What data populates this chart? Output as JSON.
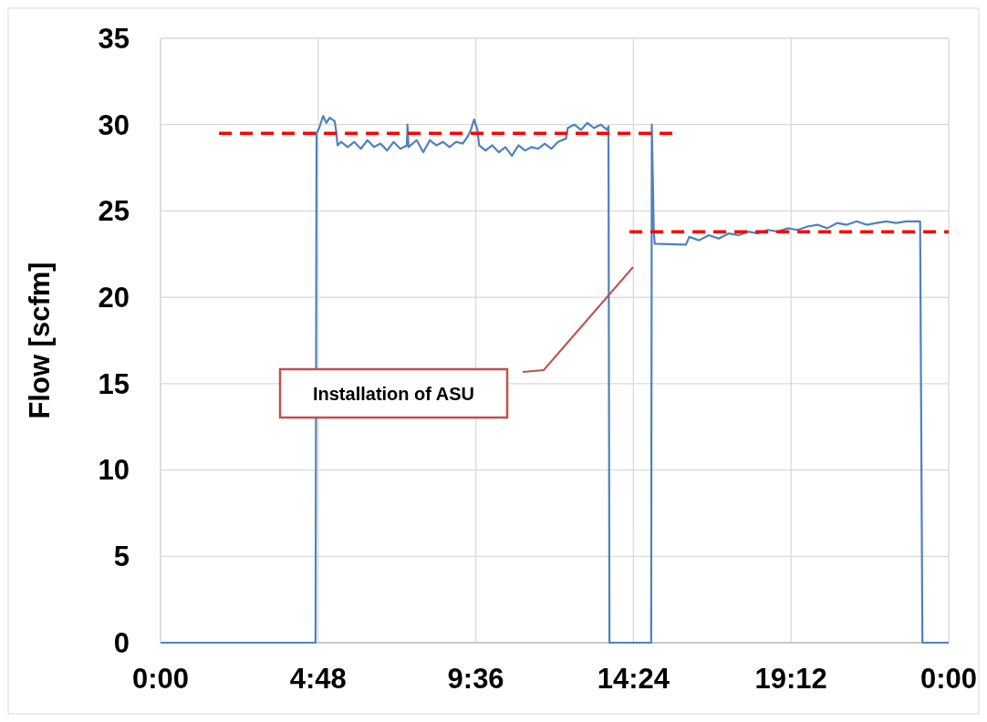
{
  "chart_data": {
    "type": "line",
    "ylabel": "Flow [scfm]",
    "xlim": [
      0,
      24
    ],
    "ylim": [
      0,
      35
    ],
    "xticks": [
      {
        "value": 0,
        "label": "0:00"
      },
      {
        "value": 4.8,
        "label": "4:48"
      },
      {
        "value": 9.6,
        "label": "9:36"
      },
      {
        "value": 14.4,
        "label": "14:24"
      },
      {
        "value": 19.2,
        "label": "19:12"
      },
      {
        "value": 24,
        "label": "0:00"
      }
    ],
    "yticks": [
      0,
      5,
      10,
      15,
      20,
      25,
      30,
      35
    ],
    "grid": true,
    "series": [
      {
        "color": "#4f81bd",
        "x": [
          0,
          4.72,
          4.75,
          4.83,
          4.95,
          5.05,
          5.15,
          5.3,
          5.35,
          5.39,
          5.5,
          5.7,
          5.9,
          6.1,
          6.3,
          6.5,
          6.7,
          6.9,
          7.1,
          7.3,
          7.5,
          7.52,
          7.55,
          7.8,
          8.0,
          8.2,
          8.4,
          8.6,
          8.8,
          9.0,
          9.2,
          9.35,
          9.45,
          9.55,
          9.65,
          9.7,
          9.9,
          10.1,
          10.3,
          10.5,
          10.7,
          10.9,
          11.1,
          11.3,
          11.5,
          11.7,
          11.9,
          12.1,
          12.35,
          12.4,
          12.6,
          12.8,
          13.0,
          13.2,
          13.4,
          13.6,
          13.64,
          13.67,
          14.4,
          14.94,
          14.96,
          15.02,
          15.05,
          16.0,
          16.1,
          16.4,
          16.7,
          17.0,
          17.3,
          17.6,
          17.9,
          18.2,
          18.5,
          18.8,
          19.1,
          19.4,
          19.7,
          20.0,
          20.3,
          20.6,
          20.9,
          21.2,
          21.5,
          21.8,
          22.1,
          22.4,
          22.7,
          23.0,
          23.13,
          23.2,
          24
        ],
        "values": [
          0,
          0,
          29.5,
          29.8,
          30.5,
          30.1,
          30.4,
          30.2,
          29.6,
          28.8,
          29.0,
          28.7,
          29.0,
          28.6,
          29.1,
          28.7,
          28.9,
          28.5,
          29.0,
          28.6,
          28.8,
          30.0,
          28.7,
          29.1,
          28.4,
          29.1,
          28.8,
          29.0,
          28.7,
          29.0,
          28.9,
          29.3,
          29.7,
          30.3,
          29.7,
          28.8,
          28.5,
          28.8,
          28.4,
          28.7,
          28.2,
          28.8,
          28.5,
          28.7,
          28.6,
          28.9,
          28.6,
          29.0,
          29.2,
          29.8,
          30.0,
          29.7,
          30.1,
          29.8,
          30.0,
          29.7,
          29.9,
          0,
          0,
          0,
          30,
          23.8,
          23.1,
          23.05,
          23.5,
          23.3,
          23.6,
          23.4,
          23.7,
          23.6,
          23.8,
          23.7,
          23.9,
          23.8,
          24.0,
          23.9,
          24.1,
          24.2,
          24.0,
          24.3,
          24.2,
          24.4,
          24.2,
          24.3,
          24.4,
          24.3,
          24.4,
          24.4,
          24.4,
          0,
          0
        ]
      },
      {
        "color": "#ff0000",
        "line_style": "dashed",
        "x": [
          1.78,
          15.6
        ],
        "values": [
          29.5,
          29.5
        ]
      },
      {
        "color": "#ff0000",
        "line_style": "dashed",
        "x": [
          14.28,
          24
        ],
        "values": [
          23.8,
          23.8
        ]
      }
    ],
    "annotations": [
      "Installation of ASU"
    ]
  }
}
